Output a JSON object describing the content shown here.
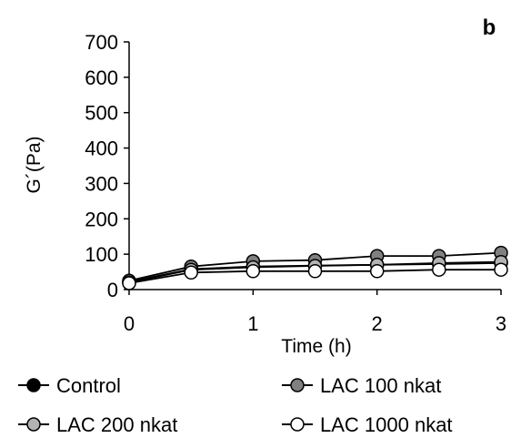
{
  "chart_data": {
    "type": "line",
    "panel_label": "b",
    "xlabel": "Time (h)",
    "ylabel": "G´(Pa)",
    "xlim": [
      0,
      3
    ],
    "ylim": [
      0,
      700
    ],
    "x_ticks": [
      0,
      1,
      2,
      3
    ],
    "y_ticks": [
      0,
      100,
      200,
      300,
      400,
      500,
      600,
      700
    ],
    "grid": false,
    "legend_position": "bottom",
    "series": [
      {
        "name": "Control",
        "marker_fill": "#000000",
        "x": [
          0,
          0.5,
          1,
          1.5,
          2,
          2.5,
          3
        ],
        "y": [
          22,
          58,
          65,
          68,
          70,
          72,
          75
        ]
      },
      {
        "name": "LAC 100 nkat",
        "marker_fill": "#808080",
        "x": [
          0,
          0.5,
          1,
          1.5,
          2,
          2.5,
          3
        ],
        "y": [
          25,
          65,
          80,
          83,
          95,
          95,
          104
        ]
      },
      {
        "name": "LAC 200 nkat",
        "marker_fill": "#b3b3b3",
        "x": [
          0,
          0.5,
          1,
          1.5,
          2,
          2.5,
          3
        ],
        "y": [
          20,
          56,
          63,
          67,
          70,
          75,
          78
        ]
      },
      {
        "name": "LAC 1000 nkat",
        "marker_fill": "#ffffff",
        "x": [
          0,
          0.5,
          1,
          1.5,
          2,
          2.5,
          3
        ],
        "y": [
          18,
          48,
          52,
          52,
          52,
          56,
          56
        ]
      }
    ]
  }
}
